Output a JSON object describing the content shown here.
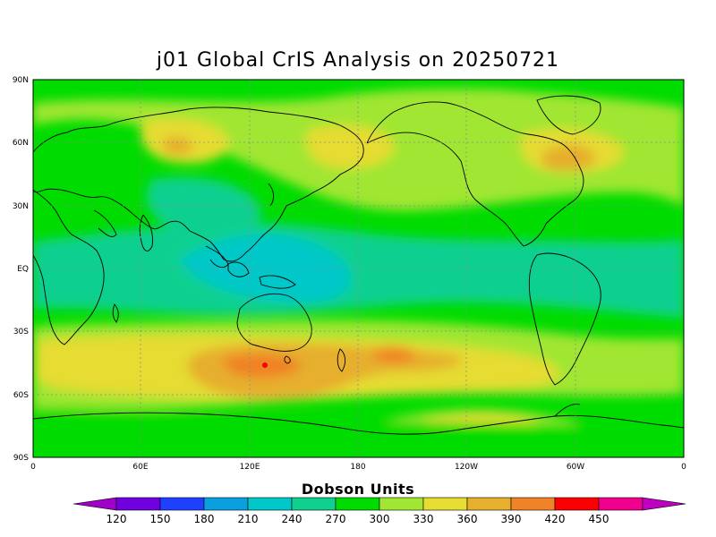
{
  "title": "j01 Global CrIS Analysis on 20250721",
  "lat_labels": [
    "90N",
    "60N",
    "30N",
    "EQ",
    "30S",
    "60S",
    "90S"
  ],
  "lon_labels": [
    "0",
    "60E",
    "120E",
    "180",
    "120W",
    "60W",
    "0"
  ],
  "colorbar": {
    "title": "Dobson Units",
    "levels": [
      "120",
      "150",
      "180",
      "210",
      "240",
      "270",
      "300",
      "330",
      "360",
      "390",
      "420",
      "450"
    ],
    "colors": [
      "#a000c8",
      "#7000e0",
      "#2040ff",
      "#0aa0e0",
      "#00c8c8",
      "#10d090",
      "#00dc00",
      "#a0e632",
      "#e6dc32",
      "#e6af2d",
      "#f08228",
      "#fa0000",
      "#f0008c",
      "#c000c0"
    ]
  },
  "map": {
    "ocean_base_color": "#10d090",
    "land_outline_color": "#000000",
    "grid_color": "#8c8c8c"
  }
}
